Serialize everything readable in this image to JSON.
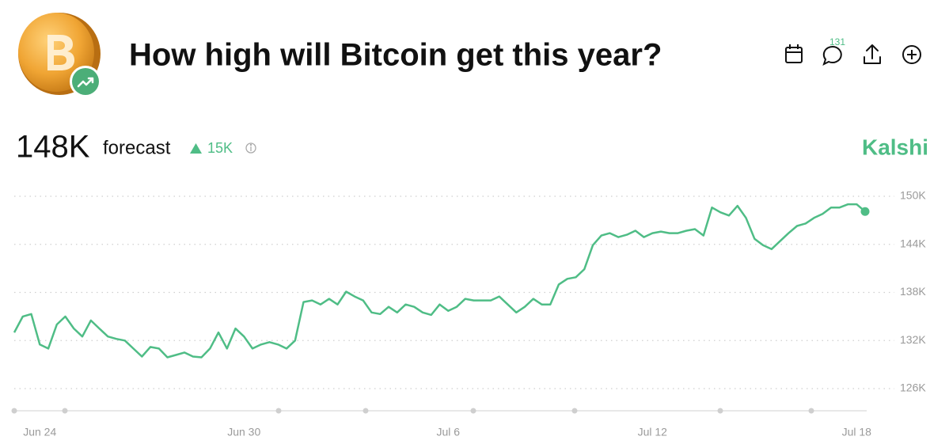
{
  "header": {
    "title": "How high will Bitcoin get this year?",
    "comments": "131",
    "forecast_value": "148K",
    "forecast_word": "forecast",
    "change": "15K",
    "brand": "Kalshi"
  },
  "chart_data": {
    "type": "line",
    "color": "#4fbd86",
    "grid": true,
    "categories": [
      null,
      null,
      null,
      "Jun 24",
      null,
      null,
      null,
      null,
      null,
      null,
      null,
      null,
      null,
      null,
      null,
      null,
      null,
      null,
      null,
      null,
      null,
      null,
      null,
      null,
      null,
      null,
      null,
      "Jun 30",
      null,
      null,
      null,
      null,
      null,
      null,
      null,
      null,
      null,
      null,
      null,
      null,
      null,
      null,
      null,
      null,
      null,
      null,
      null,
      null,
      null,
      null,
      null,
      "Jul 6",
      null,
      null,
      null,
      null,
      null,
      null,
      null,
      null,
      null,
      null,
      null,
      null,
      null,
      null,
      null,
      null,
      null,
      null,
      null,
      null,
      null,
      null,
      null,
      "Jul 12",
      null,
      null,
      null,
      null,
      null,
      null,
      null,
      null,
      null,
      null,
      null,
      null,
      null,
      null,
      null,
      null,
      null,
      null,
      null,
      null,
      null,
      null,
      null,
      "Jul 18",
      null
    ],
    "values": [
      133.0,
      135.0,
      135.3,
      131.5,
      131.0,
      134.0,
      135.0,
      133.5,
      132.5,
      134.5,
      133.5,
      132.5,
      132.2,
      132.0,
      131.0,
      130.0,
      131.2,
      131.0,
      129.9,
      130.2,
      130.5,
      130.0,
      129.9,
      131.0,
      133.0,
      131.0,
      133.5,
      132.5,
      131.0,
      131.5,
      131.8,
      131.5,
      131.0,
      132.0,
      136.8,
      137.0,
      136.5,
      137.2,
      136.5,
      138.1,
      137.5,
      137.0,
      135.5,
      135.3,
      136.2,
      135.5,
      136.5,
      136.2,
      135.5,
      135.2,
      136.5,
      135.7,
      136.2,
      137.2,
      137.0,
      137.0,
      137.0,
      137.5,
      136.5,
      135.5,
      136.2,
      137.2,
      136.5,
      136.5,
      139.0,
      139.7,
      139.9,
      140.9,
      143.9,
      145.1,
      145.4,
      144.9,
      145.2,
      145.7,
      144.9,
      145.4,
      145.6,
      145.4,
      145.4,
      145.7,
      145.9,
      145.1,
      148.6,
      148.0,
      147.6,
      148.8,
      147.3,
      144.7,
      143.9,
      143.4,
      144.4,
      145.4,
      146.3,
      146.6,
      147.3,
      147.8,
      148.6,
      148.6,
      149.0,
      149.0,
      148.1
    ],
    "ylim": [
      126,
      150
    ],
    "yticks": [
      {
        "value": 126,
        "label": "126K"
      },
      {
        "value": 132,
        "label": "132K"
      },
      {
        "value": 138,
        "label": "138K"
      },
      {
        "value": 144,
        "label": "144K"
      },
      {
        "value": 150,
        "label": "150K"
      }
    ]
  }
}
